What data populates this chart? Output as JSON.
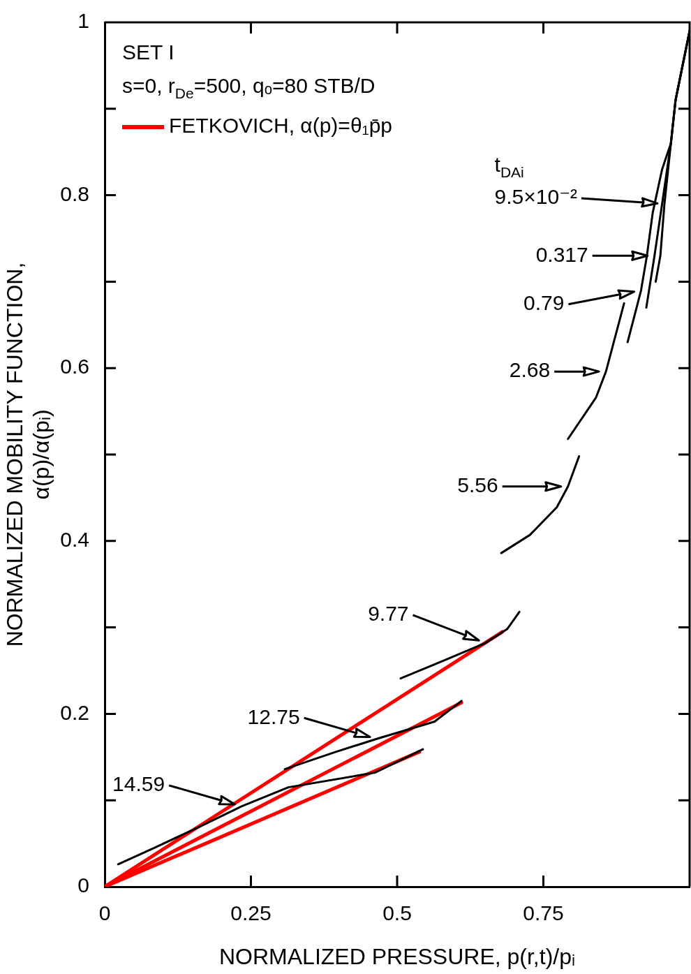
{
  "chart_data": {
    "type": "line",
    "xlabel": "NORMALIZED PRESSURE, p(r,t)/pᵢ",
    "ylabel": "NORMALIZED MOBILITY FUNCTION, α(p)/α(pᵢ)",
    "annotations": [
      "SET I",
      "s=0, r$_{De}$=500, qₒ=80 STB/D",
      "t$_{DAi}$",
      "9.5×10⁻²",
      "0.317",
      "0.79",
      "2.68",
      "5.56",
      "9.77",
      "12.75",
      "14.59"
    ],
    "xlim": [
      0,
      1
    ],
    "xticks": [
      0,
      0.25,
      0.5,
      0.75
    ],
    "ylim": [
      0,
      1
    ],
    "yticks": [
      0,
      {
        "value": 0.1,
        "label": null
      },
      0.2,
      {
        "value": 0.3,
        "label": null
      },
      0.4,
      {
        "value": 0.5,
        "label": null
      },
      0.6,
      {
        "value": 0.7,
        "label": null
      },
      0.8,
      {
        "value": 0.9,
        "label": null
      },
      1
    ],
    "legend": "top left",
    "series": [
      {
        "color": "#000000",
        "x": [
          1.0,
          0.976,
          0.968,
          0.957,
          0.95,
          0.942
        ],
        "values": [
          0.99,
          0.91,
          0.86,
          0.79,
          0.73,
          0.7
        ]
      },
      {
        "color": "#000000",
        "x": [
          1.0,
          0.976,
          0.968,
          0.953,
          0.94,
          0.926
        ],
        "values": [
          0.99,
          0.91,
          0.86,
          0.79,
          0.73,
          0.67
        ]
      },
      {
        "color": "#000000",
        "x": [
          1.0,
          0.976,
          0.968,
          0.953,
          0.937,
          0.927,
          0.917,
          0.894
        ],
        "values": [
          0.99,
          0.91,
          0.86,
          0.83,
          0.78,
          0.73,
          0.69,
          0.63
        ]
      },
      {
        "color": "#000000",
        "x": [
          0.888,
          0.857,
          0.84,
          0.792
        ],
        "values": [
          0.675,
          0.596,
          0.566,
          0.518
        ]
      },
      {
        "color": "#000000",
        "x": [
          0.811,
          0.792,
          0.773,
          0.727,
          0.678
        ],
        "values": [
          0.498,
          0.463,
          0.439,
          0.407,
          0.386
        ]
      },
      {
        "color": "#000000",
        "x": [
          0.709,
          0.688,
          0.651,
          0.581,
          0.506
        ],
        "values": [
          0.318,
          0.298,
          0.282,
          0.262,
          0.241
        ]
      },
      {
        "color": "#000000",
        "x": [
          0.61,
          0.564,
          0.465,
          0.395,
          0.308
        ],
        "values": [
          0.215,
          0.191,
          0.171,
          0.156,
          0.136
        ]
      },
      {
        "color": "#000000",
        "x": [
          0.544,
          0.462,
          0.314,
          0.234,
          0.164,
          0.088,
          0.023
        ],
        "values": [
          0.159,
          0.132,
          0.115,
          0.093,
          0.07,
          0.046,
          0.026
        ]
      },
      {
        "name": "FETKOVICH, α(p)=θ₁p̄p",
        "color": "#ff0000",
        "x": [
          0,
          0.68
        ],
        "values": [
          0,
          0.295
        ]
      },
      {
        "color": "#ff0000",
        "x": [
          0,
          0.61
        ],
        "values": [
          0,
          0.213
        ]
      },
      {
        "color": "#ff0000",
        "x": [
          0,
          0.538
        ],
        "values": [
          0,
          0.156
        ]
      }
    ]
  }
}
